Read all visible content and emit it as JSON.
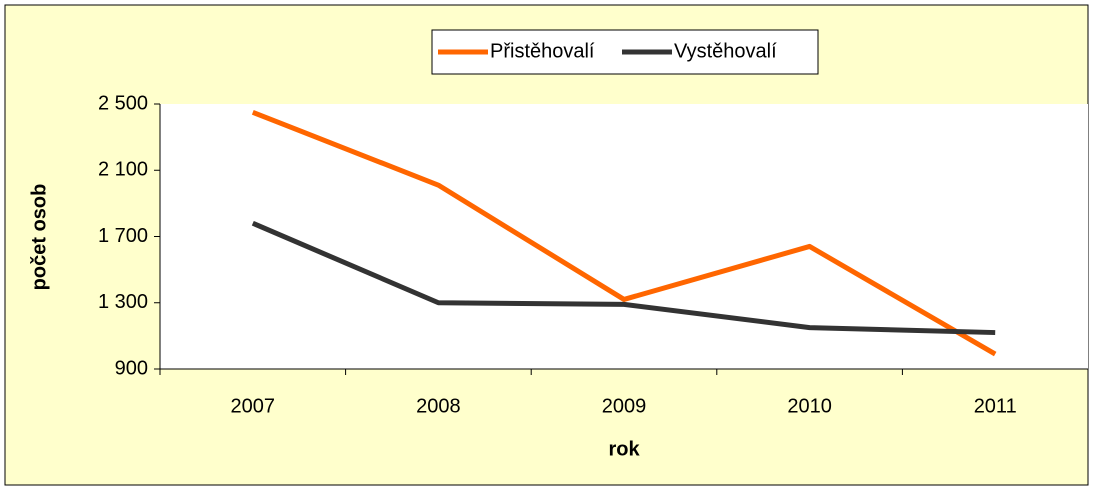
{
  "chart_data": {
    "type": "line",
    "x_label": "rok",
    "y_label": "počet osob",
    "categories": [
      "2007",
      "2008",
      "2009",
      "2010",
      "2011"
    ],
    "series": [
      {
        "name": "Přistěhovalí",
        "color": "#ff6600",
        "values": [
          2450,
          2010,
          1320,
          1640,
          990
        ]
      },
      {
        "name": "Vystěhovalí",
        "color": "#333333",
        "values": [
          1780,
          1300,
          1290,
          1150,
          1120
        ]
      }
    ],
    "ylim": [
      900,
      2500
    ],
    "yticks": [
      900,
      {
        "value": 1300,
        "label": "1 300"
      },
      {
        "value": 1700,
        "label": "1 700"
      },
      {
        "value": 2100,
        "label": "2 100"
      },
      {
        "value": 2500,
        "label": "2 500"
      }
    ],
    "legend": "top"
  }
}
